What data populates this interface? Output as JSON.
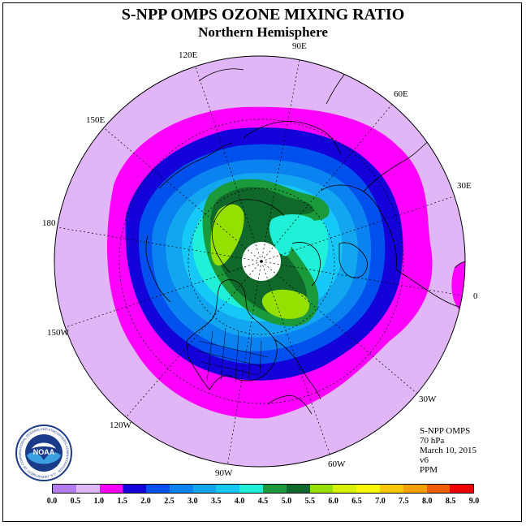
{
  "header": {
    "title": "S-NPP OMPS OZONE MIXING RATIO",
    "subtitle": "Northern Hemisphere"
  },
  "longitude_labels": {
    "lon_90e": "90E",
    "lon_60e": "60E",
    "lon_30e": "30E",
    "lon_0": "0",
    "lon_30w": "30W",
    "lon_60w": "60W",
    "lon_90w": "90W",
    "lon_120w": "120W",
    "lon_150w": "150W",
    "lon_180": "180",
    "lon_150e": "150E",
    "lon_120e": "120E"
  },
  "info": {
    "instrument": "S-NPP OMPS",
    "pressure": "70 hPa",
    "date": "March 10, 2015",
    "version": "v6",
    "units": "PPM"
  },
  "colorbar": {
    "ticks": [
      "0.0",
      "0.5",
      "1.0",
      "1.5",
      "2.0",
      "2.5",
      "3.0",
      "3.5",
      "4.0",
      "4.5",
      "5.0",
      "5.5",
      "6.0",
      "6.5",
      "7.0",
      "7.5",
      "8.0",
      "8.5",
      "9.0"
    ],
    "colors": [
      "#b57cf2",
      "#e0b6f6",
      "#ff00ff",
      "#1400d8",
      "#0050ee",
      "#0a82f0",
      "#12a6f0",
      "#16c8f8",
      "#20f0d8",
      "#1a9a3a",
      "#10682a",
      "#96e000",
      "#d8f000",
      "#f8f800",
      "#f8c800",
      "#f8a000",
      "#f06000",
      "#f00000",
      "#885030"
    ]
  },
  "logo": {
    "text": "NOAA",
    "ring_text": "NATIONAL OCEANIC AND ATMOSPHERIC ADMINISTRATION · U.S. DEPARTMENT OF COMMERCE"
  }
}
